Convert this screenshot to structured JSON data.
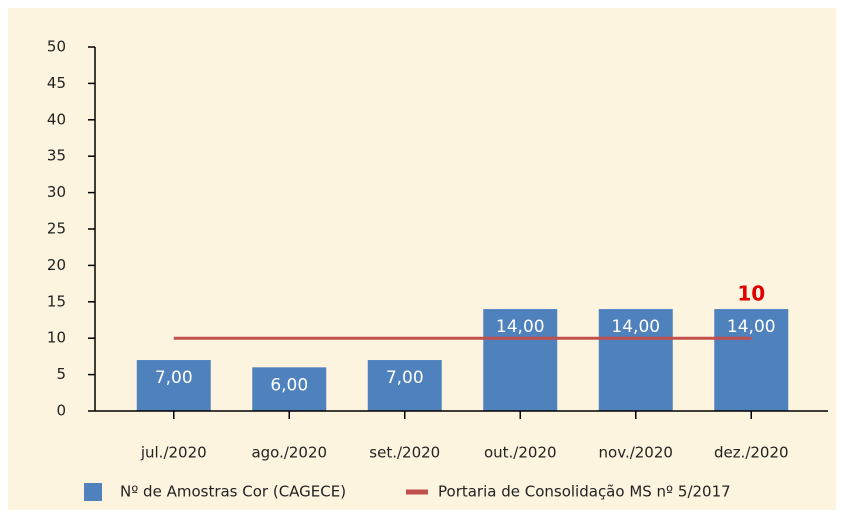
{
  "chart_data": {
    "type": "bar",
    "categories": [
      "jul./2020",
      "ago./2020",
      "set./2020",
      "out./2020",
      "nov./2020",
      "dez./2020"
    ],
    "series": [
      {
        "name": "Nº de Amostras Cor (CAGECE)",
        "type": "bar",
        "color": "#4f81bd",
        "values": [
          7,
          6,
          7,
          14,
          14,
          14
        ],
        "value_labels": [
          "7,00",
          "6,00",
          "7,00",
          "14,00",
          "14,00",
          "14,00"
        ]
      },
      {
        "name": "Portaria de Consolidação MS nº 5/2017",
        "type": "line",
        "color": "#c0504d",
        "values": [
          10,
          10,
          10,
          10,
          10,
          10
        ]
      }
    ],
    "annotation": "10",
    "ylim": [
      0,
      50
    ],
    "yticks": [
      0,
      5,
      10,
      15,
      20,
      25,
      30,
      35,
      40,
      45,
      50
    ]
  }
}
